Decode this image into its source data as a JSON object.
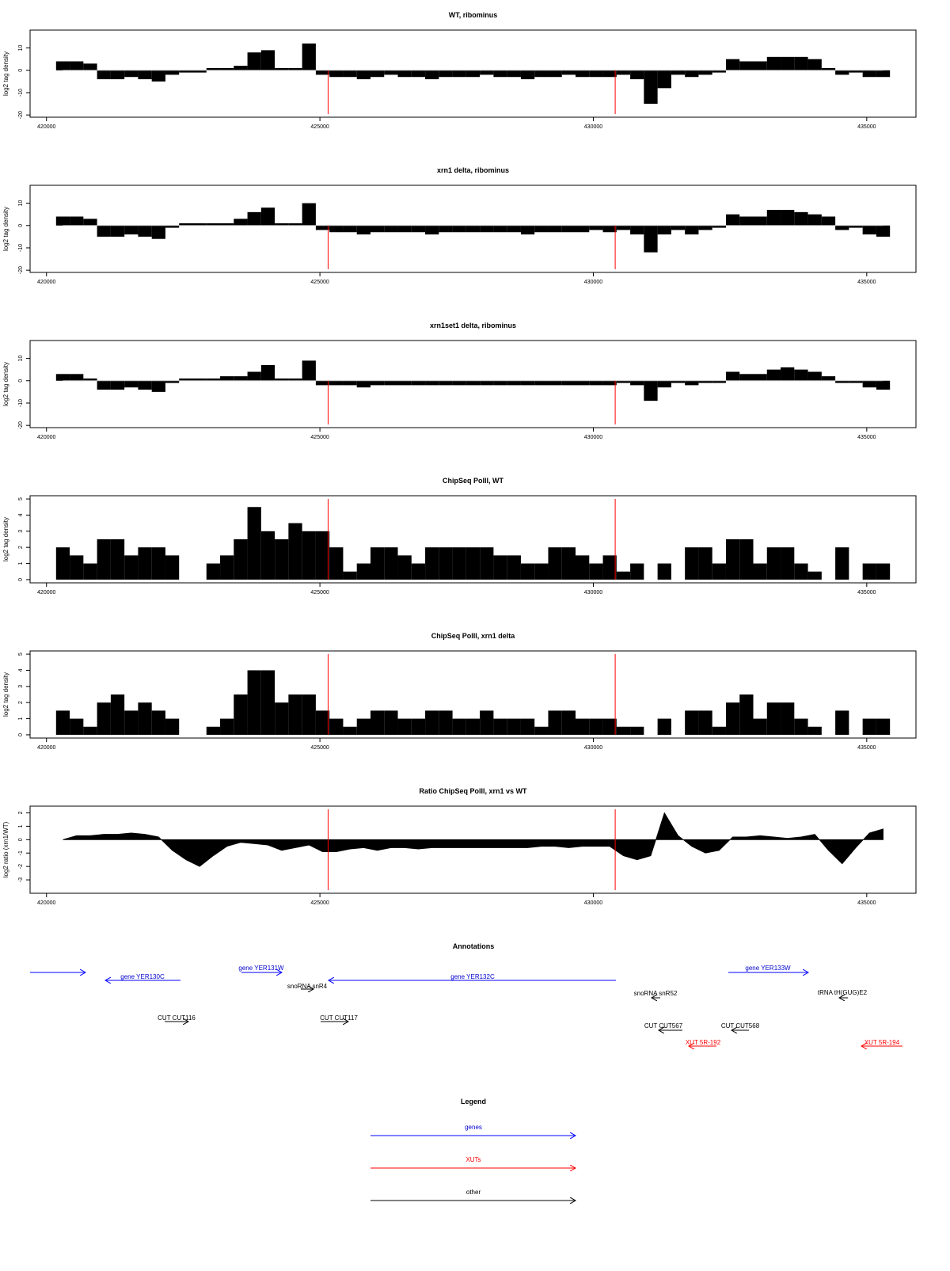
{
  "chart_data": [
    {
      "type": "bar",
      "title": "WT, ribominus",
      "y_label": "log2 tag density",
      "color": "#000000",
      "x": [
        420300,
        420550,
        420800,
        421050,
        421300,
        421550,
        421800,
        422050,
        422300,
        422550,
        422800,
        423050,
        423300,
        423550,
        423800,
        424050,
        424300,
        424550,
        424800,
        425050,
        425300,
        425550,
        425800,
        426050,
        426300,
        426550,
        426800,
        427050,
        427300,
        427550,
        427800,
        428050,
        428300,
        428550,
        428800,
        429050,
        429300,
        429550,
        429800,
        430050,
        430300,
        430550,
        430800,
        431050,
        431300,
        431550,
        431800,
        432050,
        432300,
        432550,
        432800,
        433050,
        433300,
        433550,
        433800,
        434050,
        434300,
        434550,
        434800,
        435050,
        435300
      ],
      "values": [
        4,
        4,
        3,
        -4,
        -4,
        -3,
        -4,
        -5,
        -2,
        -1,
        -1,
        1,
        1,
        2,
        8,
        9,
        1,
        1,
        12,
        -2,
        -3,
        -3,
        -4,
        -3,
        -2,
        -3,
        -3,
        -4,
        -3,
        -3,
        -3,
        -2,
        -3,
        -3,
        -4,
        -3,
        -3,
        -2,
        -3,
        -3,
        -3,
        -2,
        -4,
        -15,
        -8,
        -2,
        -3,
        -2,
        -1,
        5,
        4,
        4,
        6,
        6,
        6,
        5,
        1,
        -2,
        -1,
        -3,
        -3
      ],
      "xlim": [
        419700,
        435900
      ],
      "xticks": [
        420000,
        425000,
        430000,
        435000
      ],
      "ylim": [
        -21,
        18
      ],
      "yticks": [
        -20,
        -10,
        0,
        10
      ],
      "vlines": [
        425150,
        430400
      ],
      "vline_color": "#ff0000"
    },
    {
      "type": "bar",
      "title": "xrn1 delta, ribominus",
      "y_label": "log2 tag density",
      "color": "#000000",
      "x": [
        420300,
        420550,
        420800,
        421050,
        421300,
        421550,
        421800,
        422050,
        422300,
        422550,
        422800,
        423050,
        423300,
        423550,
        423800,
        424050,
        424300,
        424550,
        424800,
        425050,
        425300,
        425550,
        425800,
        426050,
        426300,
        426550,
        426800,
        427050,
        427300,
        427550,
        427800,
        428050,
        428300,
        428550,
        428800,
        429050,
        429300,
        429550,
        429800,
        430050,
        430300,
        430550,
        430800,
        431050,
        431300,
        431550,
        431800,
        432050,
        432300,
        432550,
        432800,
        433050,
        433300,
        433550,
        433800,
        434050,
        434300,
        434550,
        434800,
        435050,
        435300
      ],
      "values": [
        4,
        4,
        3,
        -5,
        -5,
        -4,
        -5,
        -6,
        -1,
        1,
        1,
        1,
        1,
        3,
        6,
        8,
        1,
        1,
        10,
        -2,
        -3,
        -3,
        -4,
        -3,
        -3,
        -3,
        -3,
        -4,
        -3,
        -3,
        -3,
        -3,
        -3,
        -3,
        -4,
        -3,
        -3,
        -3,
        -3,
        -2,
        -3,
        -2,
        -4,
        -12,
        -4,
        -2,
        -4,
        -2,
        -1,
        5,
        4,
        4,
        7,
        7,
        6,
        5,
        4,
        -2,
        -1,
        -4,
        -5
      ],
      "xlim": [
        419700,
        435900
      ],
      "xticks": [
        420000,
        425000,
        430000,
        435000
      ],
      "ylim": [
        -21,
        18
      ],
      "yticks": [
        -20,
        -10,
        0,
        10
      ],
      "vlines": [
        425150,
        430400
      ],
      "vline_color": "#ff0000"
    },
    {
      "type": "bar",
      "title": "xrn1set1 delta, ribominus",
      "y_label": "log2 tag density",
      "color": "#000000",
      "x": [
        420300,
        420550,
        420800,
        421050,
        421300,
        421550,
        421800,
        422050,
        422300,
        422550,
        422800,
        423050,
        423300,
        423550,
        423800,
        424050,
        424300,
        424550,
        424800,
        425050,
        425300,
        425550,
        425800,
        426050,
        426300,
        426550,
        426800,
        427050,
        427300,
        427550,
        427800,
        428050,
        428300,
        428550,
        428800,
        429050,
        429300,
        429550,
        429800,
        430050,
        430300,
        430550,
        430800,
        431050,
        431300,
        431550,
        431800,
        432050,
        432300,
        432550,
        432800,
        433050,
        433300,
        433550,
        433800,
        434050,
        434300,
        434550,
        434800,
        435050,
        435300
      ],
      "values": [
        3,
        3,
        1,
        -4,
        -4,
        -3,
        -4,
        -5,
        -1,
        1,
        1,
        1,
        2,
        2,
        4,
        7,
        1,
        1,
        9,
        -2,
        -2,
        -2,
        -3,
        -2,
        -2,
        -2,
        -2,
        -2,
        -2,
        -2,
        -2,
        -2,
        -2,
        -2,
        -2,
        -2,
        -2,
        -2,
        -2,
        -2,
        -2,
        -1,
        -2,
        -9,
        -3,
        -1,
        -2,
        -1,
        -1,
        4,
        3,
        3,
        5,
        6,
        5,
        4,
        2,
        -1,
        -1,
        -3,
        -4
      ],
      "xlim": [
        419700,
        435900
      ],
      "xticks": [
        420000,
        425000,
        430000,
        435000
      ],
      "ylim": [
        -21,
        18
      ],
      "yticks": [
        -20,
        -10,
        0,
        10
      ],
      "vlines": [
        425150,
        430400
      ],
      "vline_color": "#ff0000"
    },
    {
      "type": "bar",
      "title": "ChipSeq PolII, WT",
      "y_label": "log2 tag density",
      "color": "#000000",
      "x": [
        420300,
        420550,
        420800,
        421050,
        421300,
        421550,
        421800,
        422050,
        422300,
        422550,
        422800,
        423050,
        423300,
        423550,
        423800,
        424050,
        424300,
        424550,
        424800,
        425050,
        425300,
        425550,
        425800,
        426050,
        426300,
        426550,
        426800,
        427050,
        427300,
        427550,
        427800,
        428050,
        428300,
        428550,
        428800,
        429050,
        429300,
        429550,
        429800,
        430050,
        430300,
        430550,
        430800,
        431050,
        431300,
        431550,
        431800,
        432050,
        432300,
        432550,
        432800,
        433050,
        433300,
        433550,
        433800,
        434050,
        434300,
        434550,
        434800,
        435050,
        435300
      ],
      "values": [
        2,
        1.5,
        1,
        2.5,
        2.5,
        1.5,
        2,
        2,
        1.5,
        0,
        0,
        1,
        1.5,
        2.5,
        4.5,
        3,
        2.5,
        3.5,
        3,
        3,
        2,
        0.5,
        1,
        2,
        2,
        1.5,
        1,
        2,
        2,
        2,
        2,
        2,
        1.5,
        1.5,
        1,
        1,
        2,
        2,
        1.5,
        1,
        1.5,
        0.5,
        1,
        0,
        1,
        0,
        2,
        2,
        1,
        2.5,
        2.5,
        1,
        2,
        2,
        1,
        0.5,
        0,
        2,
        0,
        1,
        1
      ],
      "xlim": [
        419700,
        435900
      ],
      "xticks": [
        420000,
        425000,
        430000,
        435000
      ],
      "ylim": [
        -0.2,
        5.2
      ],
      "yticks": [
        0,
        1,
        2,
        3,
        4,
        5
      ],
      "vlines": [
        425150,
        430400
      ],
      "vline_color": "#ff0000"
    },
    {
      "type": "bar",
      "title": "ChipSeq PolII, xrn1 delta",
      "y_label": "log2 tag density",
      "color": "#000000",
      "x": [
        420300,
        420550,
        420800,
        421050,
        421300,
        421550,
        421800,
        422050,
        422300,
        422550,
        422800,
        423050,
        423300,
        423550,
        423800,
        424050,
        424300,
        424550,
        424800,
        425050,
        425300,
        425550,
        425800,
        426050,
        426300,
        426550,
        426800,
        427050,
        427300,
        427550,
        427800,
        428050,
        428300,
        428550,
        428800,
        429050,
        429300,
        429550,
        429800,
        430050,
        430300,
        430550,
        430800,
        431050,
        431300,
        431550,
        431800,
        432050,
        432300,
        432550,
        432800,
        433050,
        433300,
        433550,
        433800,
        434050,
        434300,
        434550,
        434800,
        435050,
        435300
      ],
      "values": [
        1.5,
        1,
        0.5,
        2,
        2.5,
        1.5,
        2,
        1.5,
        1,
        0,
        0,
        0.5,
        1,
        2.5,
        4,
        4,
        2,
        2.5,
        2.5,
        1.5,
        1,
        0.5,
        1,
        1.5,
        1.5,
        1,
        1,
        1.5,
        1.5,
        1,
        1,
        1.5,
        1,
        1,
        1,
        0.5,
        1.5,
        1.5,
        1,
        1,
        1,
        0.5,
        0.5,
        0,
        1,
        0,
        1.5,
        1.5,
        0.5,
        2,
        2.5,
        1,
        2,
        2,
        1,
        0.5,
        0,
        1.5,
        0,
        1,
        1
      ],
      "xlim": [
        419700,
        435900
      ],
      "xticks": [
        420000,
        425000,
        430000,
        435000
      ],
      "ylim": [
        -0.2,
        5.2
      ],
      "yticks": [
        0,
        1,
        2,
        3,
        4,
        5
      ],
      "vlines": [
        425150,
        430400
      ],
      "vline_color": "#ff0000"
    },
    {
      "type": "area",
      "title": "Ratio ChipSeq PolII, xrn1 vs WT",
      "y_label": "log2 ratio (xrn1/WT)",
      "color": "#000000",
      "x": [
        420300,
        420550,
        420800,
        421050,
        421300,
        421550,
        421800,
        422050,
        422300,
        422550,
        422800,
        423050,
        423300,
        423550,
        423800,
        424050,
        424300,
        424550,
        424800,
        425050,
        425300,
        425550,
        425800,
        426050,
        426300,
        426550,
        426800,
        427050,
        427300,
        427550,
        427800,
        428050,
        428300,
        428550,
        428800,
        429050,
        429300,
        429550,
        429800,
        430050,
        430300,
        430550,
        430800,
        431050,
        431300,
        431550,
        431800,
        432050,
        432300,
        432550,
        432800,
        433050,
        433300,
        433550,
        433800,
        434050,
        434300,
        434550,
        434800,
        435050,
        435300
      ],
      "values": [
        0,
        0.3,
        0.3,
        0.4,
        0.4,
        0.5,
        0.4,
        0.2,
        -0.8,
        -1.5,
        -2,
        -1.2,
        -0.5,
        -0.2,
        -0.3,
        -0.4,
        -0.8,
        -0.6,
        -0.4,
        -0.9,
        -0.9,
        -0.7,
        -0.6,
        -0.8,
        -0.6,
        -0.6,
        -0.7,
        -0.6,
        -0.6,
        -0.6,
        -0.6,
        -0.6,
        -0.6,
        -0.6,
        -0.6,
        -0.5,
        -0.5,
        -0.6,
        -0.5,
        -0.5,
        -0.5,
        -1.2,
        -1.5,
        -1.2,
        2,
        0.3,
        -0.5,
        -1,
        -0.8,
        0.2,
        0.2,
        0.3,
        0.2,
        0.1,
        0.2,
        0.4,
        -0.8,
        -1.8,
        -0.6,
        0.5,
        0.8
      ],
      "xlim": [
        419700,
        435900
      ],
      "xticks": [
        420000,
        425000,
        430000,
        435000
      ],
      "ylim": [
        -4,
        2.5
      ],
      "yticks": [
        -3,
        -2,
        -1,
        0,
        1,
        2
      ],
      "vlines": [
        425150,
        430400
      ],
      "vline_color": "#ff0000"
    }
  ],
  "annotations": {
    "title": "Annotations",
    "features": [
      "gene YER130C",
      "gene YER131W",
      "snoRNA snR4",
      "gene YER132C",
      "gene YER133W",
      "snoRNA snR52",
      "tRNA tH(GUG)E2",
      "CUT CUT116",
      "CUT CUT117",
      "CUT CUT567",
      "CUT CUT568",
      "XUT 5R-192",
      "XUT 5R-194"
    ]
  },
  "legend": {
    "title": "Legend",
    "items": [
      "genes",
      "XUTs",
      "other"
    ]
  }
}
